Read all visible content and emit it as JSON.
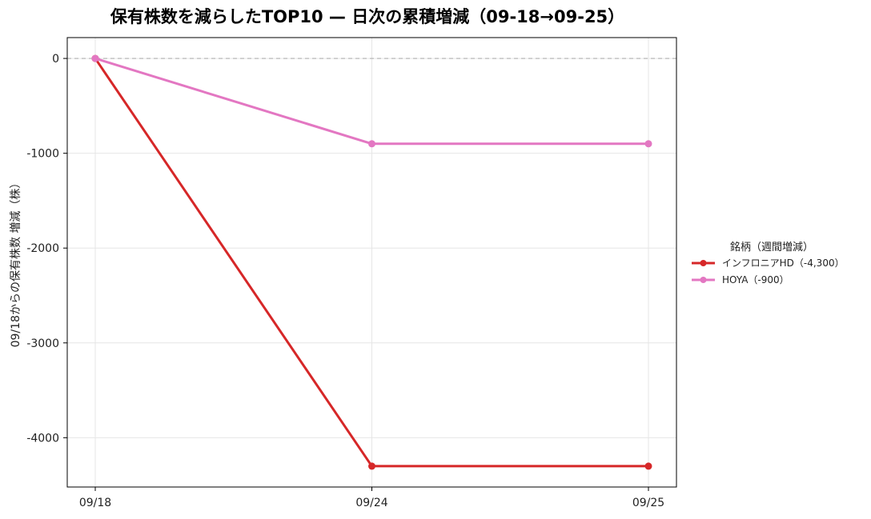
{
  "chart_data": {
    "type": "line",
    "title": "保有株数を減らしたTOP10 — 日次の累積増減（09-18→09-25）",
    "xlabel": "",
    "ylabel": "09/18からの保有株数 増減（株）",
    "categories": [
      "09/18",
      "09/24",
      "09/25"
    ],
    "ylim": [
      -4520,
      220
    ],
    "yticks": [
      0,
      -1000,
      -2000,
      -3000,
      -4000
    ],
    "grid": true,
    "zero_line": true,
    "legend": {
      "title": "銘柄（週間増減）",
      "placement": "right"
    },
    "series": [
      {
        "name": "インフロニアHD（-4,300）",
        "color": "#d62728",
        "values": [
          0,
          -4300,
          -4300
        ]
      },
      {
        "name": "HOYA（-900）",
        "color": "#e377c2",
        "values": [
          0,
          -900,
          -900
        ]
      }
    ]
  }
}
